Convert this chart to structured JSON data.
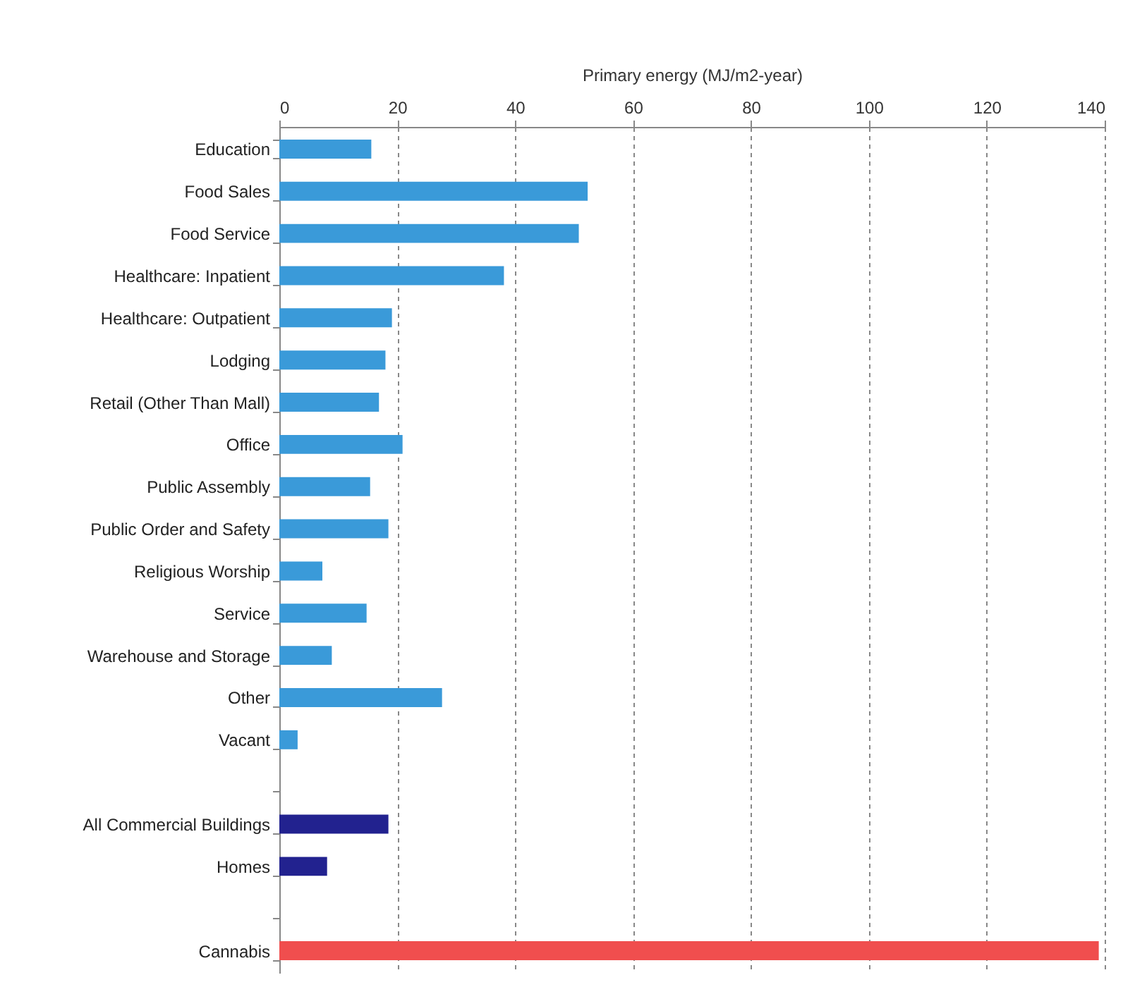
{
  "chart_data": {
    "type": "bar",
    "orientation": "horizontal",
    "xlabel": "Primary energy (MJ/m2-year)",
    "categories": [
      "Education",
      "Food Sales",
      "Food Service",
      "Healthcare:  Inpatient",
      "Healthcare:  Outpatient",
      "Lodging",
      "Retail (Other Than Mall)",
      "Office",
      "Public Assembly",
      "Public Order and Safety",
      "Religious Worship",
      "Service",
      "Warehouse and Storage",
      "Other",
      "Vacant",
      null,
      "All Commercial Buildings",
      "Homes",
      null,
      "Cannabis"
    ],
    "values": [
      15.6,
      52.3,
      50.8,
      38.1,
      19.1,
      18.0,
      16.9,
      20.9,
      15.4,
      18.5,
      7.3,
      14.8,
      8.9,
      27.6,
      3.1,
      null,
      18.5,
      8.1,
      null,
      139
    ],
    "colors": [
      "#3a9ad9",
      "#3a9ad9",
      "#3a9ad9",
      "#3a9ad9",
      "#3a9ad9",
      "#3a9ad9",
      "#3a9ad9",
      "#3a9ad9",
      "#3a9ad9",
      "#3a9ad9",
      "#3a9ad9",
      "#3a9ad9",
      "#3a9ad9",
      "#3a9ad9",
      "#3a9ad9",
      "#3a9ad9",
      "#22228f",
      "#22228f",
      "#f04e4e",
      "#f04e4e"
    ],
    "xlim": [
      0,
      140
    ],
    "xticks": [
      0,
      20,
      40,
      60,
      80,
      100,
      120,
      140
    ],
    "grid": "x"
  }
}
